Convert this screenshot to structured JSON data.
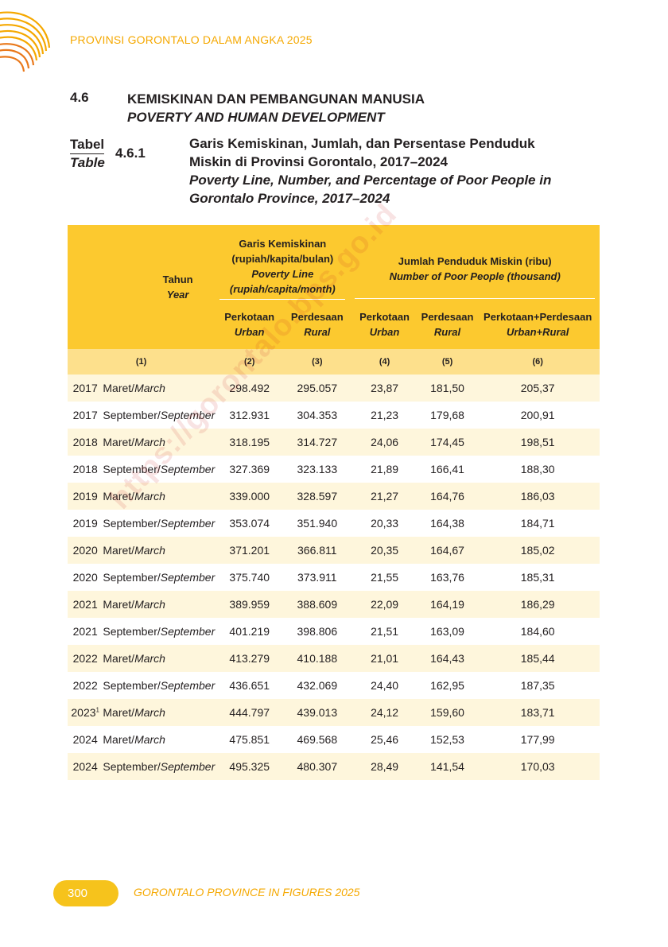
{
  "header": {
    "running_title": "PROVINSI GORONTALO DALAM ANGKA 2025"
  },
  "section": {
    "number": "4.6",
    "title_id": "KEMISKINAN DAN PEMBANGUNAN MANUSIA",
    "title_en": "POVERTY AND HUMAN DEVELOPMENT"
  },
  "table_caption": {
    "label_id": "Tabel",
    "label_en": "Table",
    "number": "4.6.1",
    "title_id_1": "Garis Kemiskinan, Jumlah, dan Persentase Penduduk",
    "title_id_2": "Miskin di Provinsi Gorontalo, 2017–2024",
    "title_en_1": "Poverty Line, Number, and Percentage of Poor People in",
    "title_en_2": "Gorontalo Province, 2017–2024"
  },
  "table": {
    "headers": {
      "tahun_id": "Tahun",
      "tahun_en": "Year",
      "gk_1": "Garis Kemiskinan",
      "gk_2": "(rupiah/kapita/bulan)",
      "gk_3": "Poverty Line",
      "gk_4": "(rupiah/capita/month)",
      "jp_1": "Jumlah Penduduk Miskin (ribu)",
      "jp_2": "Number of Poor People (thousand)",
      "urban_id": "Perkotaan",
      "urban_en": "Urban",
      "rural_id": "Perdesaan",
      "rural_en": "Rural",
      "total_id": "Perkotaan+Perdesaan",
      "total_en": "Urban+Rural"
    },
    "col_numbers": [
      "(1)",
      "(2)",
      "(3)",
      "(4)",
      "(5)",
      "(6)"
    ],
    "rows": [
      {
        "year": "2017",
        "sup": "",
        "period_id": "Maret/",
        "period_en": "March",
        "gk_urban": "298.492",
        "gk_rural": "295.057",
        "poor_urban": "23,87",
        "poor_rural": "181,50",
        "poor_total": "205,37"
      },
      {
        "year": "2017",
        "sup": "",
        "period_id": "September/",
        "period_en": "September",
        "gk_urban": "312.931",
        "gk_rural": "304.353",
        "poor_urban": "21,23",
        "poor_rural": "179,68",
        "poor_total": "200,91"
      },
      {
        "year": "2018",
        "sup": "",
        "period_id": "Maret/",
        "period_en": "March",
        "gk_urban": "318.195",
        "gk_rural": "314.727",
        "poor_urban": "24,06",
        "poor_rural": "174,45",
        "poor_total": "198,51"
      },
      {
        "year": "2018",
        "sup": "",
        "period_id": "September/",
        "period_en": "September",
        "gk_urban": "327.369",
        "gk_rural": "323.133",
        "poor_urban": "21,89",
        "poor_rural": "166,41",
        "poor_total": "188,30"
      },
      {
        "year": "2019",
        "sup": "",
        "period_id": "Maret/",
        "period_en": "March",
        "gk_urban": "339.000",
        "gk_rural": "328.597",
        "poor_urban": "21,27",
        "poor_rural": "164,76",
        "poor_total": "186,03"
      },
      {
        "year": "2019",
        "sup": "",
        "period_id": "September/",
        "period_en": "September",
        "gk_urban": "353.074",
        "gk_rural": "351.940",
        "poor_urban": "20,33",
        "poor_rural": "164,38",
        "poor_total": "184,71"
      },
      {
        "year": "2020",
        "sup": "",
        "period_id": "Maret/",
        "period_en": "March",
        "gk_urban": "371.201",
        "gk_rural": "366.811",
        "poor_urban": "20,35",
        "poor_rural": "164,67",
        "poor_total": "185,02"
      },
      {
        "year": "2020",
        "sup": "",
        "period_id": "September/",
        "period_en": "September",
        "gk_urban": "375.740",
        "gk_rural": "373.911",
        "poor_urban": "21,55",
        "poor_rural": "163,76",
        "poor_total": "185,31"
      },
      {
        "year": "2021",
        "sup": "",
        "period_id": "Maret/",
        "period_en": "March",
        "gk_urban": "389.959",
        "gk_rural": "388.609",
        "poor_urban": "22,09",
        "poor_rural": "164,19",
        "poor_total": "186,29"
      },
      {
        "year": "2021",
        "sup": "",
        "period_id": "September/",
        "period_en": "September",
        "gk_urban": "401.219",
        "gk_rural": "398.806",
        "poor_urban": "21,51",
        "poor_rural": "163,09",
        "poor_total": "184,60"
      },
      {
        "year": "2022",
        "sup": "",
        "period_id": "Maret/",
        "period_en": "March",
        "gk_urban": "413.279",
        "gk_rural": "410.188",
        "poor_urban": "21,01",
        "poor_rural": "164,43",
        "poor_total": "185,44"
      },
      {
        "year": "2022",
        "sup": "",
        "period_id": "September/",
        "period_en": "September",
        "gk_urban": "436.651",
        "gk_rural": "432.069",
        "poor_urban": "24,40",
        "poor_rural": "162,95",
        "poor_total": "187,35"
      },
      {
        "year": "2023",
        "sup": "1",
        "period_id": "Maret/",
        "period_en": "March",
        "gk_urban": "444.797",
        "gk_rural": "439.013",
        "poor_urban": "24,12",
        "poor_rural": "159,60",
        "poor_total": "183,71"
      },
      {
        "year": "2024",
        "sup": "",
        "period_id": "Maret/",
        "period_en": "March",
        "gk_urban": "475.851",
        "gk_rural": "469.568",
        "poor_urban": "25,46",
        "poor_rural": "152,53",
        "poor_total": "177,99"
      },
      {
        "year": "2024",
        "sup": "",
        "period_id": "September/",
        "period_en": "September",
        "gk_urban": "495.325",
        "gk_rural": "480.307",
        "poor_urban": "28,49",
        "poor_rural": "141,54",
        "poor_total": "170,03"
      }
    ]
  },
  "watermark": "https://gorontalo.bps.go.id",
  "footer": {
    "page_number": "300",
    "text": "GORONTALO PROVINCE IN FIGURES 2025"
  },
  "colors": {
    "accent": "#f5a800",
    "header_fill": "#fcc92f",
    "colnum_fill": "#fde08c",
    "stripe_fill": "#fef6dc"
  }
}
